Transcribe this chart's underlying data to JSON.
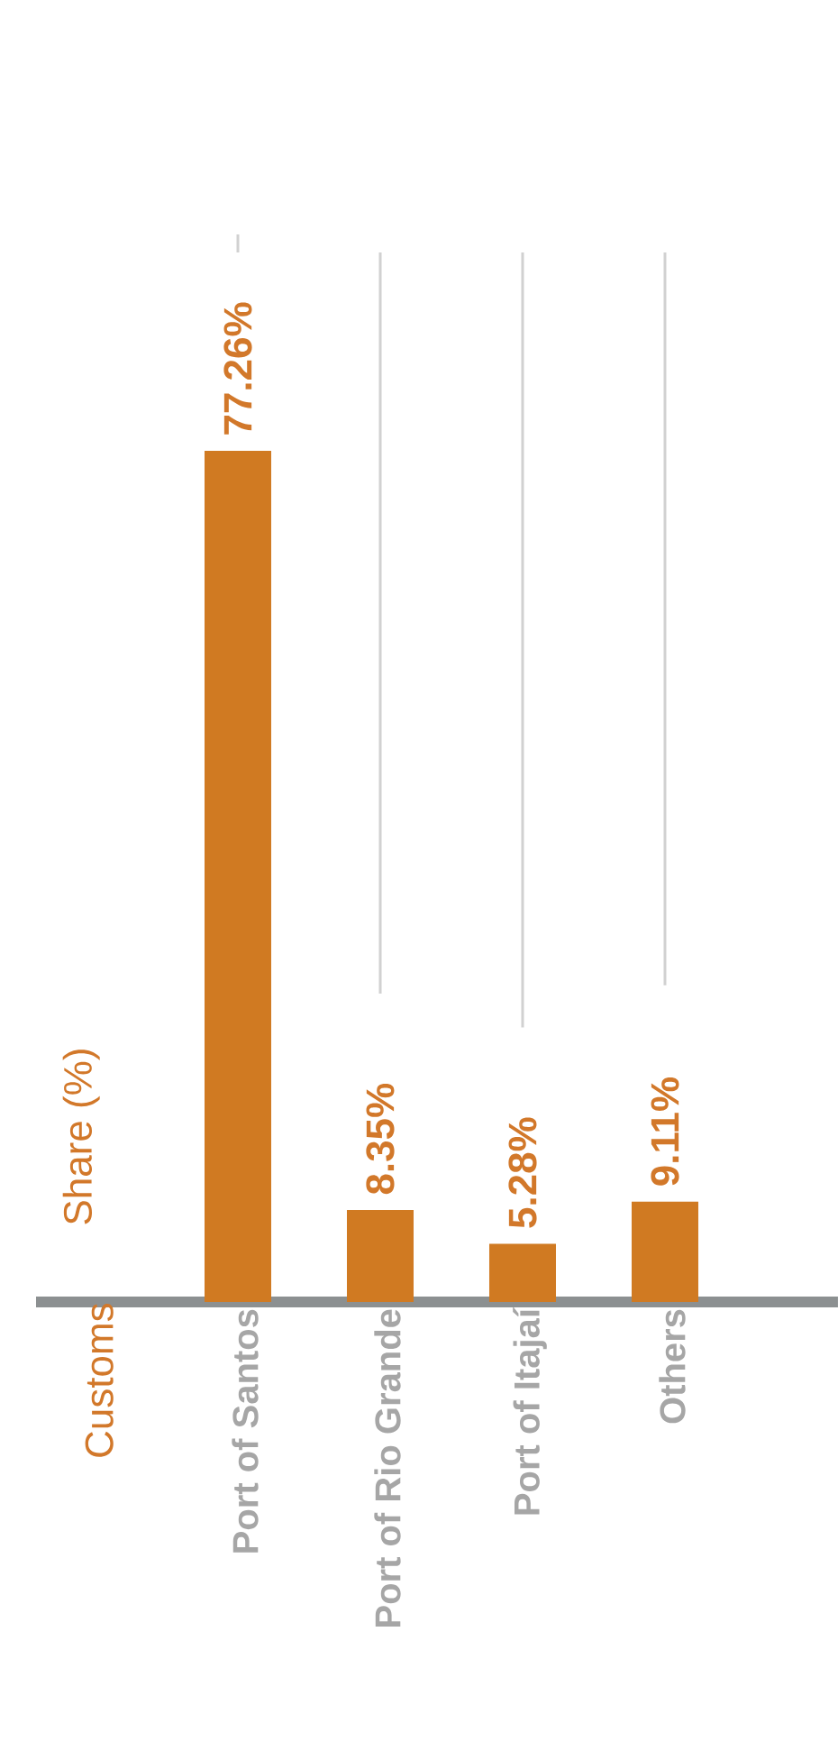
{
  "chart_data": {
    "type": "bar",
    "annotations": [
      "Customs"
    ],
    "ylabel": "Share (%)",
    "categories": [
      "Port of Santos",
      "Port of Rio Grande",
      "Port of Itajaí",
      "Others"
    ],
    "values": [
      77.26,
      8.35,
      5.28,
      9.11
    ],
    "value_labels": [
      "77.26%",
      "8.35%",
      "5.28%",
      "9.11%"
    ],
    "color": "#d07a22",
    "grid": "x"
  }
}
